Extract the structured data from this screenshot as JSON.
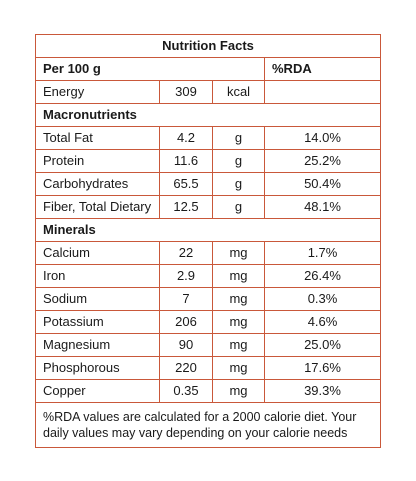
{
  "title": "Nutrition Facts",
  "header": {
    "per": "Per 100 g",
    "rda": "%RDA"
  },
  "energy": {
    "label": "Energy",
    "value": "309",
    "unit": "kcal"
  },
  "sections": {
    "macronutrients": {
      "heading": "Macronutrients",
      "rows": [
        {
          "name": "Total Fat",
          "value": "4.2",
          "unit": "g",
          "rda": "14.0%"
        },
        {
          "name": "Protein",
          "value": "11.6",
          "unit": "g",
          "rda": "25.2%"
        },
        {
          "name": "Carbohydrates",
          "value": "65.5",
          "unit": "g",
          "rda": "50.4%"
        },
        {
          "name": "Fiber, Total Dietary",
          "value": "12.5",
          "unit": "g",
          "rda": "48.1%"
        }
      ]
    },
    "minerals": {
      "heading": "Minerals",
      "rows": [
        {
          "name": "Calcium",
          "value": "22",
          "unit": "mg",
          "rda": "1.7%"
        },
        {
          "name": "Iron",
          "value": "2.9",
          "unit": "mg",
          "rda": "26.4%"
        },
        {
          "name": "Sodium",
          "value": "7",
          "unit": "mg",
          "rda": "0.3%"
        },
        {
          "name": "Potassium",
          "value": "206",
          "unit": "mg",
          "rda": "4.6%"
        },
        {
          "name": "Magnesium",
          "value": "90",
          "unit": "mg",
          "rda": "25.0%"
        },
        {
          "name": "Phosphorous",
          "value": "220",
          "unit": "mg",
          "rda": "17.6%"
        },
        {
          "name": "Copper",
          "value": "0.35",
          "unit": "mg",
          "rda": "39.3%"
        }
      ]
    }
  },
  "footnote": "%RDA values are calculated for a 2000 calorie diet. Your daily values may vary depending on your calorie needs",
  "colors": {
    "border": "#c9583a",
    "text": "#1a1a1a"
  }
}
